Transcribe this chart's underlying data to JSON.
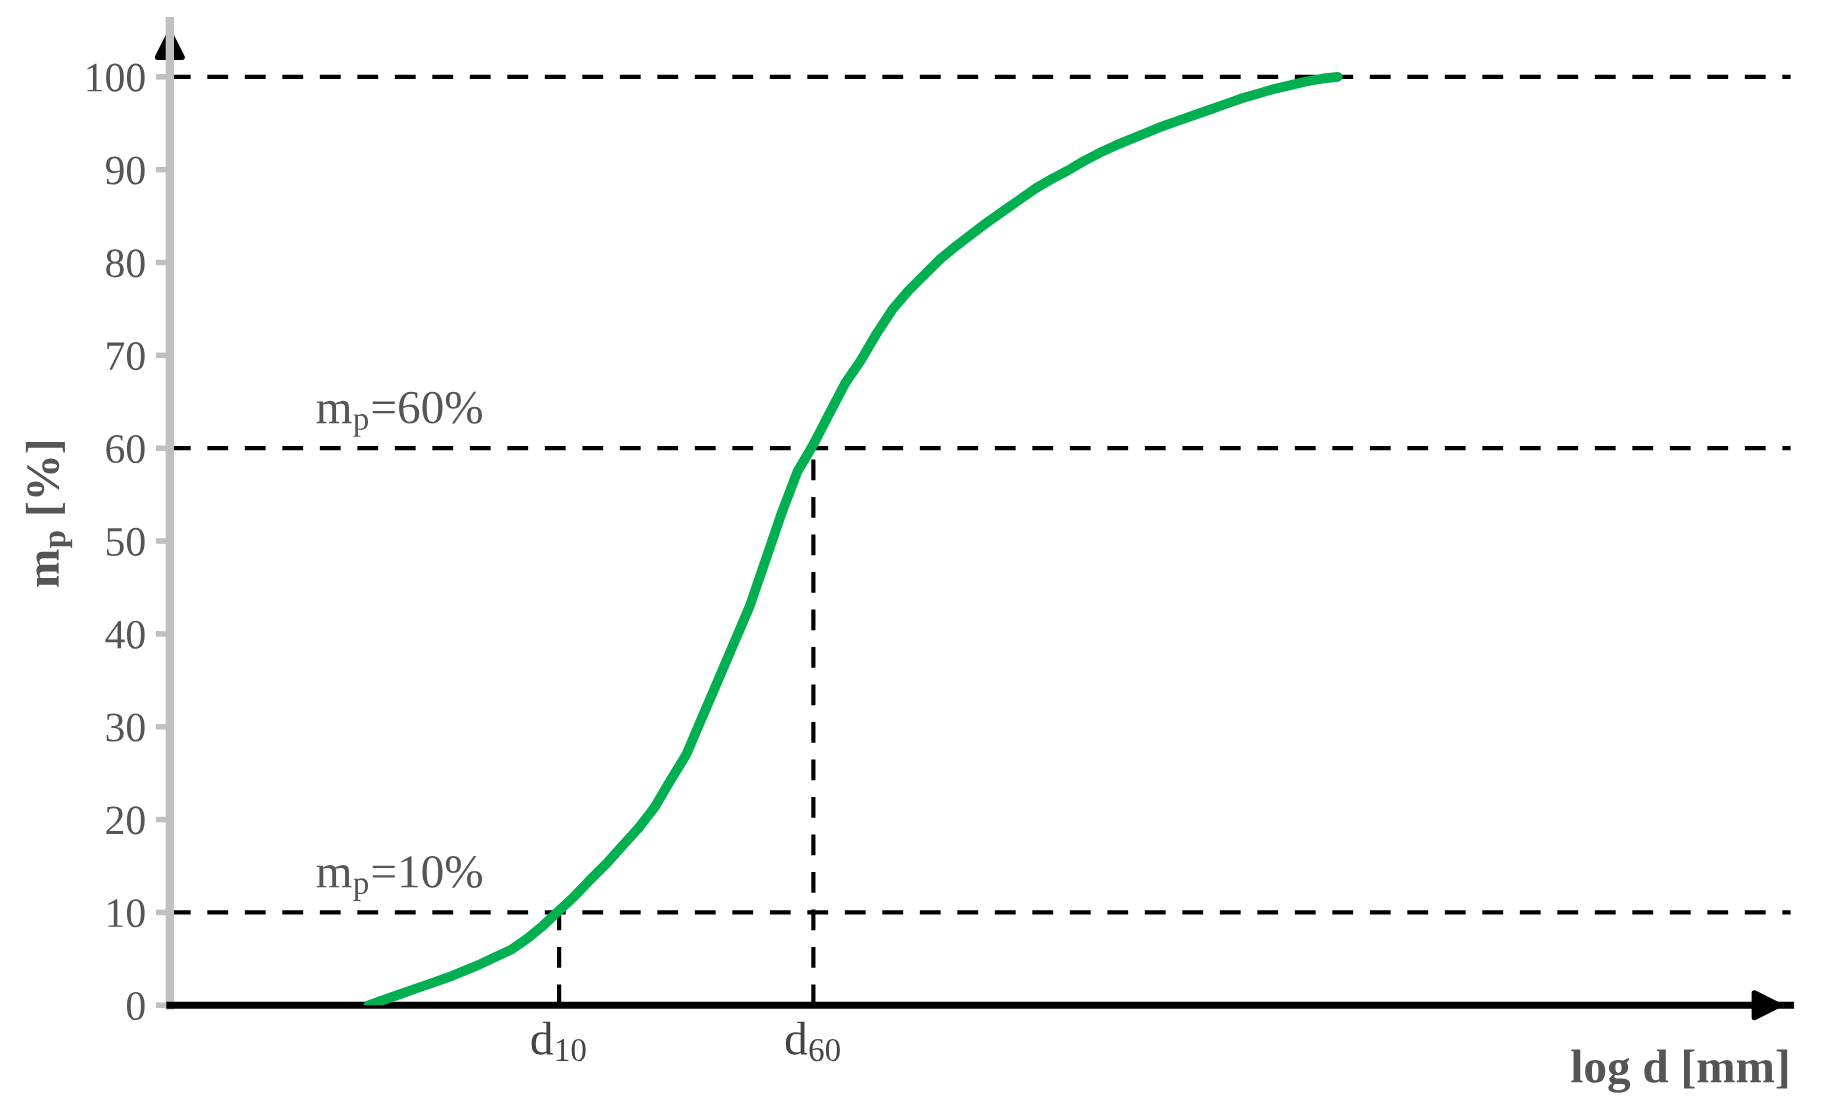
{
  "chart_data": {
    "type": "line",
    "ylabel": "m$_{p}$ [%]",
    "xlabel": "log d [mm]",
    "categories": [
      null,
      null,
      null,
      null,
      null,
      null,
      null,
      null,
      null,
      null,
      null,
      null,
      null,
      null,
      null,
      null,
      null,
      null,
      null,
      null,
      null,
      null,
      null,
      null,
      "d$_{10}$",
      null,
      null,
      null,
      null,
      null,
      null,
      null,
      null,
      null,
      null,
      null,
      null,
      null,
      null,
      null,
      "d$_{60}$",
      null,
      null,
      null,
      null,
      null,
      null,
      null,
      null,
      null,
      null,
      null,
      null,
      null,
      null,
      null,
      null,
      null,
      null,
      null,
      null,
      null,
      null,
      null,
      null,
      null,
      null,
      null,
      null,
      null,
      null,
      null,
      null,
      null,
      null,
      null,
      null,
      null,
      null,
      null,
      null,
      null,
      null,
      null,
      null,
      null,
      null,
      null,
      null,
      null,
      null,
      null,
      null,
      null,
      null,
      null,
      null,
      null,
      null,
      null,
      null,
      null
    ],
    "series": [
      {
        "color": "#00b050",
        "values": [
          null,
          null,
          null,
          null,
          null,
          null,
          null,
          null,
          null,
          null,
          null,
          null,
          0,
          0.6,
          1.2,
          1.8,
          2.4,
          3.0,
          3.7,
          4.4,
          5.2,
          6.0,
          7.2,
          8.6,
          10.2,
          11.8,
          13.6,
          15.3,
          17.2,
          19.1,
          21.3,
          24.2,
          27,
          31,
          35,
          39,
          43,
          48,
          53,
          57.5,
          60.4,
          63.7,
          67,
          69.5,
          72.4,
          75,
          77,
          78.7,
          80.4,
          81.8,
          83.1,
          84.4,
          85.6,
          86.8,
          88,
          89,
          89.9,
          90.9,
          91.8,
          92.6,
          93.3,
          94,
          94.7,
          95.3,
          95.9,
          96.5,
          97.1,
          97.7,
          98.2,
          98.7,
          99.1,
          99.5,
          99.8,
          100,
          null,
          null,
          null,
          null,
          null,
          null,
          null,
          null,
          null,
          null,
          null,
          null,
          null,
          null,
          null,
          null,
          null,
          null,
          null,
          null,
          null,
          null,
          null,
          null,
          null,
          null,
          null,
          null
        ]
      }
    ],
    "ylim": [
      0,
      106
    ],
    "yticks": [
      0,
      10,
      20,
      30,
      40,
      50,
      60,
      70,
      80,
      90,
      100
    ],
    "ref_lines": [
      {
        "axis": "y",
        "value": 100,
        "color": "#000000",
        "line_style": "dashed"
      },
      {
        "axis": "y",
        "value": 60,
        "label": "m$_{p}$=60%",
        "color": "#000000",
        "line_style": "dashed"
      },
      {
        "axis": "y",
        "value": 10,
        "label": "m$_{p}$=10%",
        "color": "#000000",
        "line_style": "dashed"
      },
      {
        "axis": "x",
        "value": "d$_{10}$",
        "color": "#000000",
        "line_style": "dashed"
      },
      {
        "axis": "x",
        "value": "d$_{60}$",
        "color": "#000000",
        "line_style": "dashed"
      }
    ],
    "grid": false,
    "marker": "none",
    "line_style": "solid"
  }
}
